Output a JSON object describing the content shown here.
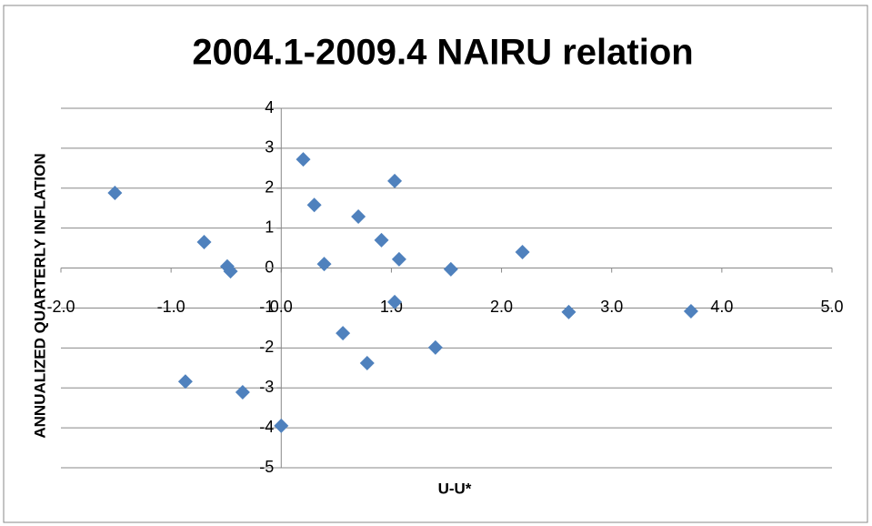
{
  "chart_data": {
    "type": "scatter",
    "title": "2004.1-2009.4 NAIRU relation",
    "x_label": "U-U*",
    "y_label": "ANNUALIZED QUARTERLY INFLATION",
    "x": [
      -1.51,
      -0.7,
      -0.49,
      -0.46,
      -0.87,
      -0.35,
      0.0,
      0.2,
      0.3,
      0.39,
      0.56,
      0.7,
      0.78,
      0.91,
      1.03,
      1.03,
      1.07,
      1.4,
      1.54,
      2.19,
      2.61,
      3.72
    ],
    "values": [
      1.88,
      0.65,
      0.04,
      -0.08,
      -2.84,
      -3.11,
      -3.95,
      2.72,
      1.58,
      0.1,
      -1.63,
      1.29,
      -2.38,
      0.7,
      2.18,
      -0.85,
      0.22,
      -1.99,
      -0.03,
      0.4,
      -1.1,
      -1.08
    ],
    "color": "#4f81bd",
    "xlim": [
      -2,
      5
    ],
    "xticks": [
      {
        "value": -2,
        "label": "-2.0"
      },
      {
        "value": -1,
        "label": "-1.0"
      },
      {
        "value": 0,
        "label": "0.0"
      },
      {
        "value": 1,
        "label": "1.0"
      },
      {
        "value": 2,
        "label": "2.0"
      },
      {
        "value": 3,
        "label": "3.0"
      },
      {
        "value": 4,
        "label": "4.0"
      },
      {
        "value": 5,
        "label": "5.0"
      }
    ],
    "ylim": [
      -5,
      4
    ],
    "yticks": [
      -5,
      -4,
      -3,
      -2,
      -1,
      0,
      1,
      2,
      3,
      4
    ],
    "grid": true
  }
}
